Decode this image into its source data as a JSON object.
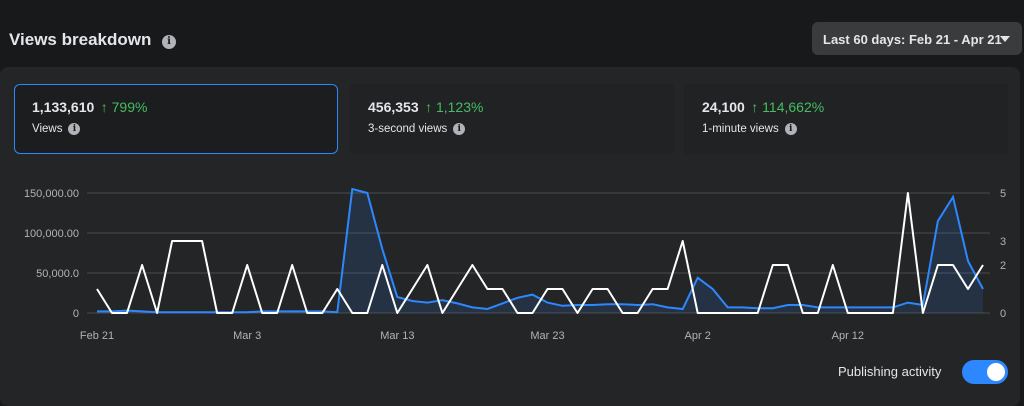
{
  "header": {
    "title": "Views breakdown",
    "date_range": "Last 60 days: Feb 21 - Apr 21"
  },
  "metrics": [
    {
      "value": "1,133,610",
      "change": "↑ 799%",
      "label": "Views"
    },
    {
      "value": "456,353",
      "change": "↑ 1,123%",
      "label": "3-second views"
    },
    {
      "value": "24,100",
      "change": "↑ 114,662%",
      "label": "1-minute views"
    }
  ],
  "footer": {
    "publishing_label": "Publishing activity",
    "publishing_enabled": true
  },
  "colors": {
    "views_line": "#2d88ff",
    "publishing_line": "#ffffff",
    "positive_change": "#45bd62"
  },
  "chart_data": {
    "type": "line",
    "x_tick_labels": [
      "Feb 21",
      "Mar 3",
      "Mar 13",
      "Mar 23",
      "Apr 2",
      "Apr 12"
    ],
    "left_axis": {
      "ticks": [
        "0",
        "50,000.0",
        "100,000.00",
        "150,000.00"
      ],
      "ylim": [
        0,
        150000
      ]
    },
    "right_axis": {
      "ticks": [
        "0",
        "2",
        "3",
        "5"
      ],
      "ylim": [
        0,
        5
      ]
    },
    "grid": true,
    "series": [
      {
        "axis": "left",
        "values": [
          2000,
          2000,
          3000,
          2000,
          1000,
          1000,
          1000,
          1000,
          1000,
          1000,
          1000,
          2000,
          2000,
          2000,
          2000,
          2000,
          1000,
          155000,
          150000,
          80000,
          20000,
          15000,
          13000,
          16000,
          12000,
          7000,
          5000,
          12000,
          19000,
          23000,
          13000,
          9000,
          10000,
          10000,
          11000,
          11000,
          10000,
          11000,
          7000,
          5000,
          44000,
          30000,
          7000,
          7000,
          6000,
          6000,
          10000,
          10000,
          7000,
          7000,
          7000,
          7000,
          7000,
          7000,
          13000,
          10000,
          115000,
          145000,
          65000,
          30000
        ]
      },
      {
        "axis": "right",
        "values": [
          1,
          0,
          0,
          2,
          0,
          3,
          3,
          3,
          0,
          0,
          2,
          0,
          0,
          2,
          0,
          0,
          1,
          0,
          0,
          2,
          0,
          1,
          2,
          0,
          1,
          2,
          1,
          1,
          0,
          0,
          1,
          1,
          0,
          1,
          1,
          0,
          0,
          1,
          1,
          3,
          0,
          0,
          0,
          0,
          0,
          2,
          2,
          0,
          0,
          2,
          0,
          0,
          0,
          0,
          5,
          0,
          2,
          2,
          1,
          2
        ]
      }
    ]
  }
}
